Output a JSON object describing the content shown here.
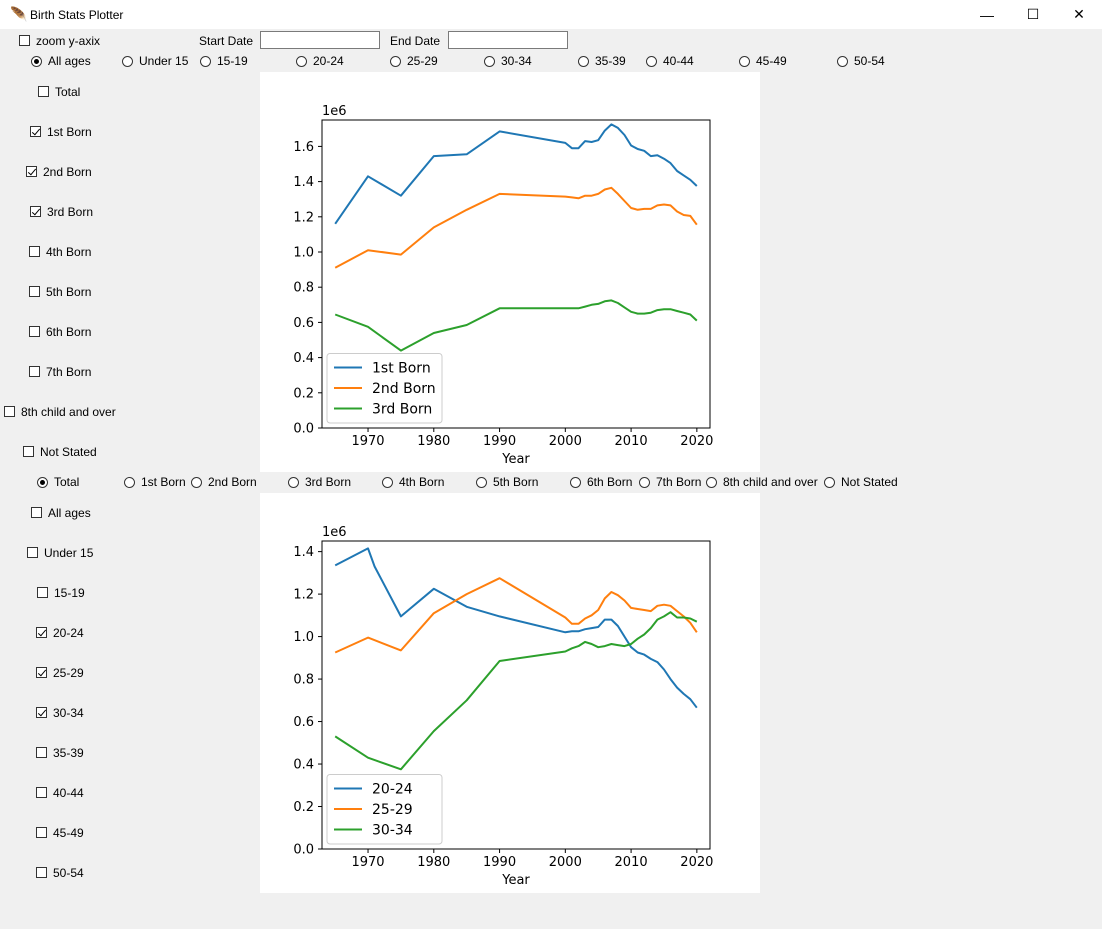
{
  "window": {
    "title": "Birth Stats Plotter",
    "minimize": "—",
    "maximize": "☐",
    "close": "✕"
  },
  "toolbar": {
    "zoom_label": "zoom y-axix",
    "zoom_checked": false,
    "start_label": "Start Date",
    "start_value": "",
    "end_label": "End Date",
    "end_value": ""
  },
  "age_radios": [
    "All ages",
    "Under 15",
    "15-19",
    "20-24",
    "25-29",
    "30-34",
    "35-39",
    "40-44",
    "45-49",
    "50-54"
  ],
  "age_radio_selected": 0,
  "order_checks": [
    {
      "label": "Total",
      "checked": false
    },
    {
      "label": "1st Born",
      "checked": true
    },
    {
      "label": "2nd Born",
      "checked": true
    },
    {
      "label": "3rd Born",
      "checked": true
    },
    {
      "label": "4th Born",
      "checked": false
    },
    {
      "label": "5th Born",
      "checked": false
    },
    {
      "label": "6th Born",
      "checked": false
    },
    {
      "label": "7th Born",
      "checked": false
    },
    {
      "label": "8th child and over",
      "checked": false
    },
    {
      "label": "Not Stated",
      "checked": false
    }
  ],
  "order_radios": [
    "Total",
    "1st Born",
    "2nd Born",
    "3rd Born",
    "4th Born",
    "5th Born",
    "6th Born",
    "7th Born",
    "8th child and over",
    "Not Stated"
  ],
  "order_radio_selected": 0,
  "age_checks": [
    {
      "label": "All ages",
      "checked": false
    },
    {
      "label": "Under 15",
      "checked": false
    },
    {
      "label": "15-19",
      "checked": false
    },
    {
      "label": "20-24",
      "checked": true
    },
    {
      "label": "25-29",
      "checked": true
    },
    {
      "label": "30-34",
      "checked": true
    },
    {
      "label": "35-39",
      "checked": false
    },
    {
      "label": "40-44",
      "checked": false
    },
    {
      "label": "45-49",
      "checked": false
    },
    {
      "label": "50-54",
      "checked": false
    }
  ],
  "chart_data": [
    {
      "type": "line",
      "xlabel": "Year",
      "ylabel": "",
      "offset_text": "1e6",
      "xlim": [
        1963,
        2022
      ],
      "ylim": [
        0,
        1.75
      ],
      "xticks": [
        1970,
        1980,
        1990,
        2000,
        2010,
        2020
      ],
      "yticks": [
        0.0,
        0.2,
        0.4,
        0.6,
        0.8,
        1.0,
        1.2,
        1.4,
        1.6
      ],
      "legend": "lower-left",
      "series": [
        {
          "name": "1st Born",
          "color": "#1f77b4",
          "x": [
            1965,
            1970,
            1975,
            1980,
            1985,
            1990,
            2000,
            2001,
            2002,
            2003,
            2004,
            2005,
            2006,
            2007,
            2008,
            2009,
            2010,
            2011,
            2012,
            2013,
            2014,
            2015,
            2016,
            2017,
            2018,
            2019,
            2020
          ],
          "y": [
            1.16,
            1.43,
            1.32,
            1.545,
            1.555,
            1.685,
            1.62,
            1.59,
            1.59,
            1.63,
            1.625,
            1.635,
            1.69,
            1.725,
            1.705,
            1.665,
            1.605,
            1.585,
            1.575,
            1.545,
            1.55,
            1.53,
            1.505,
            1.46,
            1.435,
            1.41,
            1.375
          ]
        },
        {
          "name": "2nd Born",
          "color": "#ff7f0e",
          "x": [
            1965,
            1970,
            1975,
            1980,
            1985,
            1990,
            2000,
            2001,
            2002,
            2003,
            2004,
            2005,
            2006,
            2007,
            2008,
            2009,
            2010,
            2011,
            2012,
            2013,
            2014,
            2015,
            2016,
            2017,
            2018,
            2019,
            2020
          ],
          "y": [
            0.91,
            1.01,
            0.985,
            1.14,
            1.24,
            1.33,
            1.315,
            1.31,
            1.305,
            1.32,
            1.32,
            1.33,
            1.355,
            1.365,
            1.33,
            1.29,
            1.25,
            1.24,
            1.245,
            1.245,
            1.265,
            1.27,
            1.265,
            1.23,
            1.21,
            1.205,
            1.155
          ]
        },
        {
          "name": "3rd Born",
          "color": "#2ca02c",
          "x": [
            1965,
            1970,
            1975,
            1980,
            1985,
            1990,
            2000,
            2001,
            2002,
            2003,
            2004,
            2005,
            2006,
            2007,
            2008,
            2009,
            2010,
            2011,
            2012,
            2013,
            2014,
            2015,
            2016,
            2017,
            2018,
            2019,
            2020
          ],
          "y": [
            0.645,
            0.575,
            0.44,
            0.54,
            0.585,
            0.68,
            0.68,
            0.68,
            0.68,
            0.69,
            0.7,
            0.705,
            0.72,
            0.725,
            0.71,
            0.685,
            0.66,
            0.65,
            0.65,
            0.655,
            0.67,
            0.675,
            0.675,
            0.665,
            0.655,
            0.645,
            0.61
          ]
        }
      ]
    },
    {
      "type": "line",
      "xlabel": "Year",
      "ylabel": "",
      "offset_text": "1e6",
      "xlim": [
        1963,
        2022
      ],
      "ylim": [
        0,
        1.45
      ],
      "xticks": [
        1970,
        1980,
        1990,
        2000,
        2010,
        2020
      ],
      "yticks": [
        0.0,
        0.2,
        0.4,
        0.6,
        0.8,
        1.0,
        1.2,
        1.4
      ],
      "legend": "lower-left",
      "series": [
        {
          "name": "20-24",
          "color": "#1f77b4",
          "x": [
            1965,
            1970,
            1971,
            1975,
            1980,
            1985,
            1990,
            2000,
            2001,
            2002,
            2003,
            2004,
            2005,
            2006,
            2007,
            2008,
            2009,
            2010,
            2011,
            2012,
            2013,
            2014,
            2015,
            2016,
            2017,
            2018,
            2019,
            2020
          ],
          "y": [
            1.335,
            1.415,
            1.33,
            1.095,
            1.225,
            1.14,
            1.095,
            1.02,
            1.025,
            1.025,
            1.035,
            1.04,
            1.045,
            1.08,
            1.08,
            1.05,
            1.0,
            0.95,
            0.925,
            0.915,
            0.895,
            0.88,
            0.845,
            0.8,
            0.76,
            0.73,
            0.705,
            0.665
          ]
        },
        {
          "name": "25-29",
          "color": "#ff7f0e",
          "x": [
            1965,
            1970,
            1975,
            1980,
            1985,
            1990,
            2000,
            2001,
            2002,
            2003,
            2004,
            2005,
            2006,
            2007,
            2008,
            2009,
            2010,
            2011,
            2012,
            2013,
            2014,
            2015,
            2016,
            2017,
            2018,
            2019,
            2020
          ],
          "y": [
            0.925,
            0.995,
            0.935,
            1.11,
            1.2,
            1.275,
            1.09,
            1.06,
            1.06,
            1.085,
            1.1,
            1.125,
            1.18,
            1.21,
            1.195,
            1.17,
            1.135,
            1.13,
            1.125,
            1.12,
            1.145,
            1.15,
            1.145,
            1.12,
            1.095,
            1.065,
            1.02
          ]
        },
        {
          "name": "30-34",
          "color": "#2ca02c",
          "x": [
            1965,
            1970,
            1975,
            1980,
            1985,
            1990,
            2000,
            2001,
            2002,
            2003,
            2004,
            2005,
            2006,
            2007,
            2008,
            2009,
            2010,
            2011,
            2012,
            2013,
            2014,
            2015,
            2016,
            2017,
            2018,
            2019,
            2020
          ],
          "y": [
            0.53,
            0.43,
            0.375,
            0.555,
            0.7,
            0.885,
            0.93,
            0.945,
            0.955,
            0.975,
            0.965,
            0.95,
            0.955,
            0.965,
            0.96,
            0.955,
            0.965,
            0.99,
            1.01,
            1.04,
            1.08,
            1.095,
            1.115,
            1.09,
            1.09,
            1.085,
            1.07
          ]
        }
      ]
    }
  ]
}
